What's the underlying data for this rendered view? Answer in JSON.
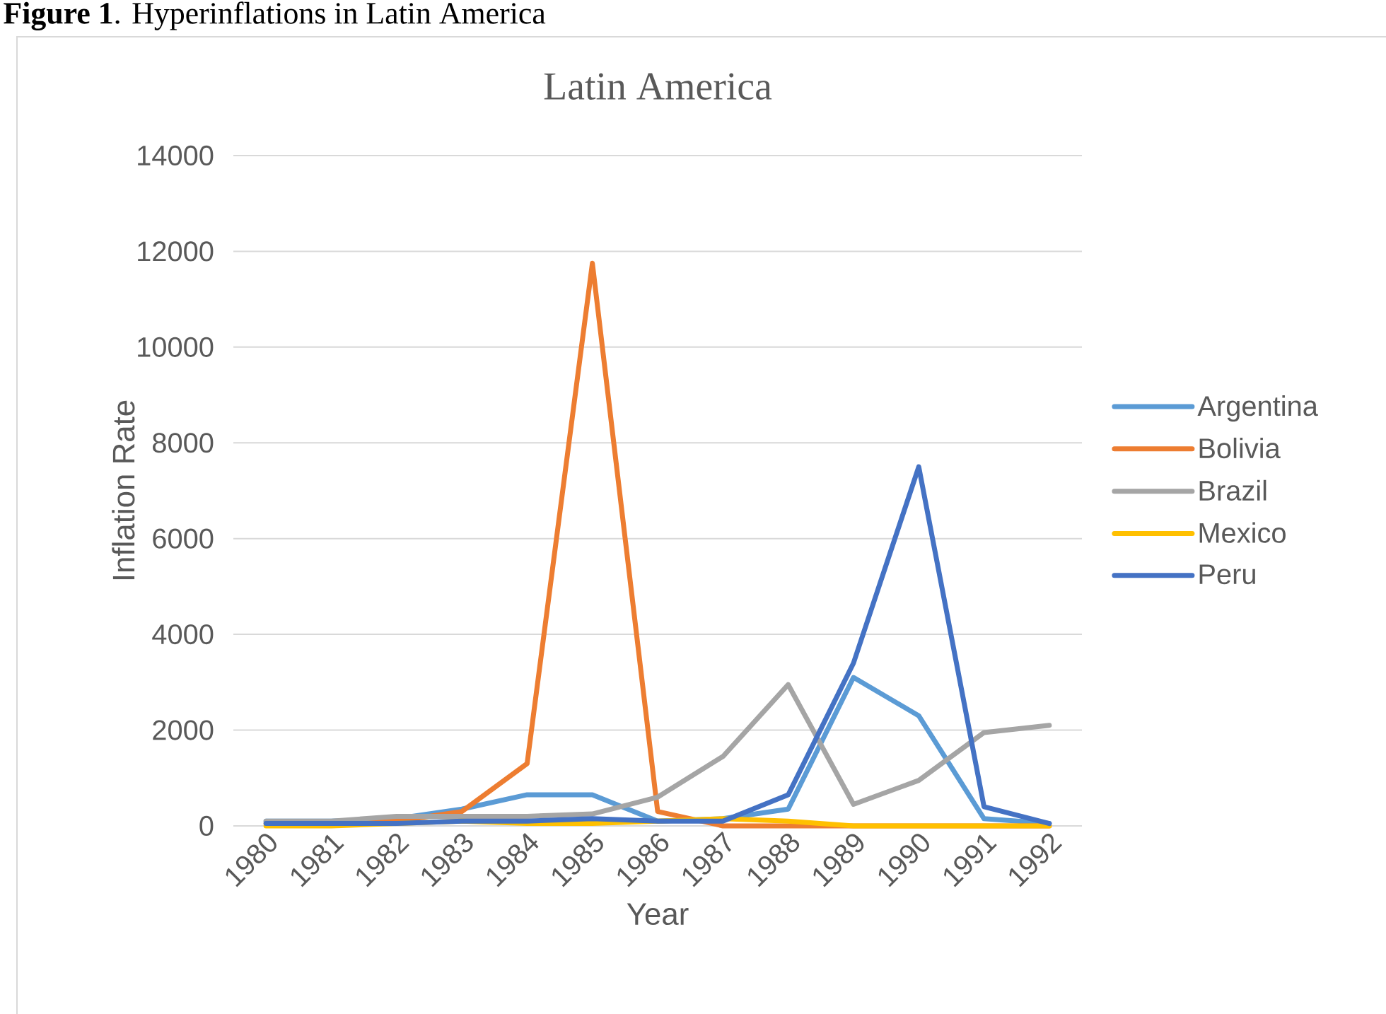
{
  "chart_data": {
    "type": "line",
    "title": "Latin America",
    "xlabel": "Year",
    "ylabel": "Inflation Rate",
    "annotations": [
      "**Figure 1**. Hyperinflations in Latin America"
    ],
    "categories": [
      "1980",
      "1981",
      "1982",
      "1983",
      "1984",
      "1985",
      "1986",
      "1987",
      "1988",
      "1989",
      "1990",
      "1991",
      "1992"
    ],
    "series": [
      {
        "name": "Argentina",
        "color": "#5b9bd5",
        "values": [
          100,
          100,
          150,
          350,
          650,
          650,
          100,
          150,
          350,
          3100,
          2300,
          150,
          50
        ]
      },
      {
        "name": "Bolivia",
        "color": "#ed7d31",
        "values": [
          50,
          50,
          100,
          300,
          1300,
          11750,
          300,
          0,
          0,
          0,
          0,
          0,
          0
        ]
      },
      {
        "name": "Brazil",
        "color": "#a5a5a5",
        "values": [
          100,
          100,
          200,
          200,
          200,
          250,
          600,
          1450,
          2950,
          450,
          950,
          1950,
          2100
        ]
      },
      {
        "name": "Mexico",
        "color": "#ffc000",
        "values": [
          0,
          0,
          50,
          100,
          50,
          50,
          100,
          150,
          100,
          0,
          0,
          0,
          0
        ]
      },
      {
        "name": "Peru",
        "color": "#4472c4",
        "values": [
          50,
          50,
          50,
          100,
          100,
          150,
          100,
          100,
          650,
          3400,
          7500,
          400,
          50
        ]
      }
    ],
    "ylim": [
      0,
      14000
    ],
    "yticks": [
      0,
      2000,
      4000,
      6000,
      8000,
      10000,
      12000,
      14000
    ],
    "grid": "y",
    "legend": "right",
    "marker": "none",
    "line_style": "solid"
  }
}
